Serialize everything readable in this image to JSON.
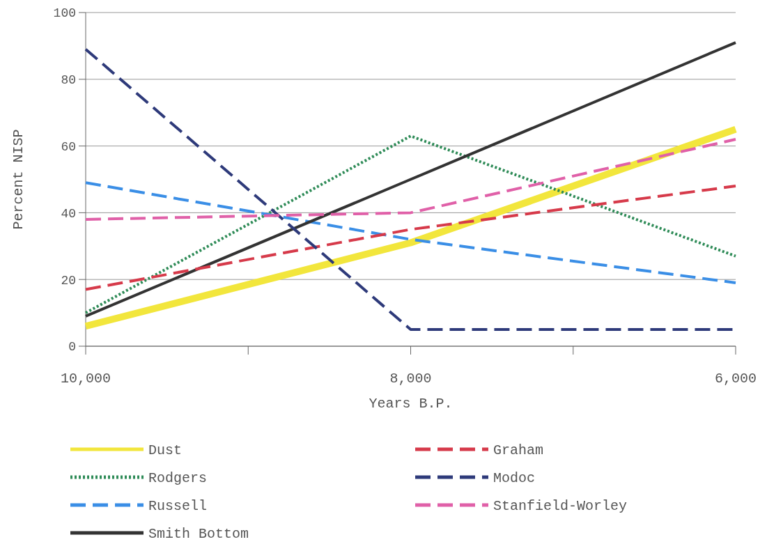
{
  "chart_data": {
    "type": "line",
    "xlabel": "Years B.P.",
    "ylabel": "Percent NISP",
    "x": [
      10000,
      8000,
      6000
    ],
    "xlim": [
      10000,
      6000
    ],
    "xticks": [
      {
        "value": 10000,
        "label": "10,000"
      },
      {
        "value": 9000,
        "label": null
      },
      {
        "value": 8000,
        "label": "8,000"
      },
      {
        "value": 7000,
        "label": null
      },
      {
        "value": 6000,
        "label": "6,000"
      }
    ],
    "ylim": [
      0,
      100
    ],
    "yticks": [
      0,
      20,
      40,
      60,
      80,
      100
    ],
    "grid": "y",
    "legend": "bottom",
    "marker": "none",
    "series": [
      {
        "name": "Dust",
        "color": "#f2e63c",
        "line_style": "solid",
        "values": [
          6,
          31,
          65
        ]
      },
      {
        "name": "Rodgers",
        "color": "#2e8b57",
        "line_style": "dotted",
        "values": [
          10,
          63,
          27
        ]
      },
      {
        "name": "Russell",
        "color": "#3a8ee6",
        "line_style": "dashed",
        "values": [
          49,
          32,
          19
        ]
      },
      {
        "name": "Smith Bottom",
        "color": "#333333",
        "line_style": "solid",
        "values": [
          9,
          50,
          91
        ]
      },
      {
        "name": "Graham",
        "color": "#d63a4a",
        "line_style": "dashed",
        "values": [
          17,
          35,
          48
        ]
      },
      {
        "name": "Modoc",
        "color": "#2e3a7a",
        "line_style": "dashed",
        "values": [
          89,
          5,
          5
        ]
      },
      {
        "name": "Stanfield-Worley",
        "color": "#e060a8",
        "line_style": "dashed",
        "values": [
          38,
          40,
          62
        ]
      }
    ]
  }
}
